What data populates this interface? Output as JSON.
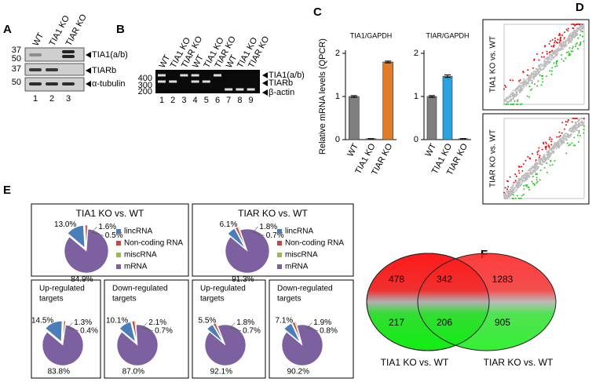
{
  "panel_labels": [
    "A",
    "B",
    "C",
    "D",
    "E",
    "F"
  ],
  "blot_a": {
    "lanes": [
      "WT",
      "TIA1 KO",
      "TIAR KO"
    ],
    "markers": [
      "37",
      "50",
      "37",
      "50"
    ],
    "bands": [
      "TIA1(a/b)",
      "TIARb",
      "α-tubulin"
    ],
    "lane_numbers": [
      "1",
      "2",
      "3"
    ]
  },
  "gel_b": {
    "lanes": [
      "WT",
      "TIA1 KO",
      "TIAR KO",
      "WT",
      "TIA1 KO",
      "TIAR KO",
      "WT",
      "TIA1 KO",
      "TIAR KO"
    ],
    "markers": [
      "400",
      "300",
      "200"
    ],
    "bands": [
      "TIA1(a/b)",
      "TIARb",
      "β-actin"
    ],
    "lane_numbers": [
      "1",
      "2",
      "3",
      "4",
      "5",
      "6",
      "7",
      "8",
      "9"
    ]
  },
  "chart_data": [
    {
      "type": "bar",
      "title": "TIA1/GAPDH",
      "y_label": "Relative mRNA levels (QPCR)",
      "categories": [
        "WT",
        "TIA1 KO",
        "TIAR KO"
      ],
      "values": [
        1.0,
        0.02,
        1.8
      ],
      "errors": [
        0.02,
        0.005,
        0.02
      ],
      "colors": [
        "#7f7f7f",
        "#7f7f7f",
        "#e07b2a"
      ],
      "ylim": [
        0,
        2
      ],
      "yticks": [
        0,
        1,
        2
      ]
    },
    {
      "type": "bar",
      "title": "TIAR/GAPDH",
      "categories": [
        "WT",
        "TIA1 KO",
        "TIAR KO"
      ],
      "values": [
        1.0,
        1.47,
        0.02
      ],
      "errors": [
        0.02,
        0.03,
        0.005
      ],
      "colors": [
        "#7f7f7f",
        "#2aa3e0",
        "#7f7f7f"
      ],
      "ylim": [
        0,
        2
      ],
      "yticks": [
        0,
        1,
        2
      ]
    },
    {
      "type": "pie",
      "title": "TIA1 KO vs. WT",
      "categories": [
        "lincRNA",
        "Non-coding RNA",
        "miscRNA",
        "mRNA"
      ],
      "values": [
        13.0,
        1.6,
        0.5,
        84.9
      ],
      "value_labels": [
        "13.0%",
        "1.6%",
        "0.5%",
        "84.9%"
      ],
      "colors": [
        "#4a7ebb",
        "#be4b48",
        "#98b954",
        "#7d60a0"
      ]
    },
    {
      "type": "pie",
      "title": "TIAR KO vs. WT",
      "categories": [
        "lincRNA",
        "Non-coding RNA",
        "miscRNA",
        "mRNA"
      ],
      "values": [
        6.1,
        1.8,
        0.7,
        91.3
      ],
      "value_labels": [
        "6.1%",
        "1.8%",
        "0.7%",
        "91.3%"
      ],
      "colors": [
        "#4a7ebb",
        "#be4b48",
        "#98b954",
        "#7d60a0"
      ]
    },
    {
      "type": "pie",
      "title": [
        "Up-regulated",
        "targets"
      ],
      "values": [
        14.5,
        1.3,
        0.4,
        83.8
      ],
      "value_labels": [
        "14.5%",
        "1.3%",
        "0.4%",
        "83.8%"
      ],
      "colors": [
        "#4a7ebb",
        "#be4b48",
        "#98b954",
        "#7d60a0"
      ]
    },
    {
      "type": "pie",
      "title": [
        "Down-regulated",
        "targets"
      ],
      "values": [
        10.1,
        2.1,
        0.7,
        87.0
      ],
      "value_labels": [
        "10.1%",
        "2.1%",
        "0.7%",
        "87.0%"
      ],
      "colors": [
        "#4a7ebb",
        "#be4b48",
        "#98b954",
        "#7d60a0"
      ]
    },
    {
      "type": "pie",
      "title": [
        "Up-regulated",
        "targets"
      ],
      "values": [
        5.5,
        1.8,
        0.7,
        92.1
      ],
      "value_labels": [
        "5.5%",
        "1.8%",
        "0.7%",
        "92.1%"
      ],
      "colors": [
        "#4a7ebb",
        "#be4b48",
        "#98b954",
        "#7d60a0"
      ]
    },
    {
      "type": "pie",
      "title": [
        "Down-regulated",
        "targets"
      ],
      "values": [
        7.1,
        1.9,
        0.8,
        90.2
      ],
      "value_labels": [
        "7.1%",
        "1.9%",
        "0.8%",
        "90.2%"
      ],
      "colors": [
        "#4a7ebb",
        "#be4b48",
        "#98b954",
        "#7d60a0"
      ]
    }
  ],
  "scatter_d": {
    "labels": [
      "TIA1 KO vs. WT",
      "TIAR KO vs. WT"
    ]
  },
  "venn_f": {
    "regions": [
      "478",
      "342",
      "1283",
      "217",
      "206",
      "905"
    ],
    "sets": [
      "TIA1 KO vs. WT",
      "TIAR KO vs. WT"
    ]
  }
}
